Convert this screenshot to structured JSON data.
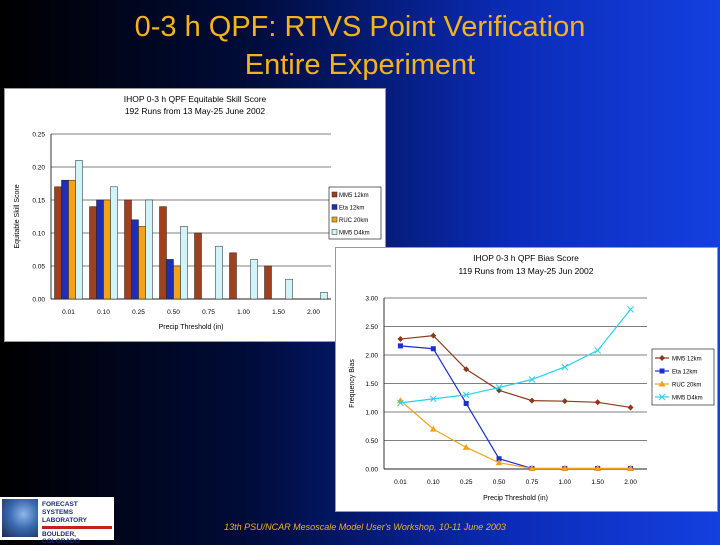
{
  "slide": {
    "title_line1": "0-3 h QPF: RTVS Point Verification",
    "title_line2": "Entire Experiment",
    "footer": "13th PSU/NCAR Mesoscale Model User's Workshop, 10-11 June 2003",
    "logo": {
      "line1": "FORECAST",
      "line2": "SYSTEMS",
      "line3": "LABORATORY",
      "line4": "BOULDER, COLORADO"
    }
  },
  "chart_data": [
    {
      "type": "bar",
      "title": "IHOP 0-3 h QPF Equitable Skill Score",
      "subtitle": "192 Runs from 13 May-25 June 2002",
      "xlabel": "Precip Threshold (in)",
      "ylabel": "Equitable Skill Score",
      "ylim": [
        0,
        0.25
      ],
      "yticks": [
        "0.00",
        "0.05",
        "0.10",
        "0.15",
        "0.20",
        "0.25"
      ],
      "categories": [
        "0.01",
        "0.10",
        "0.25",
        "0.50",
        "0.75",
        "1.00",
        "1.50",
        "2.00"
      ],
      "legend_position": "right",
      "series": [
        {
          "name": "MM5 12km",
          "color": "#a0401e",
          "values": [
            0.17,
            0.14,
            0.15,
            0.14,
            0.1,
            0.07,
            0.05,
            0
          ]
        },
        {
          "name": "Eta 12km",
          "color": "#1c2fb8",
          "values": [
            0.18,
            0.15,
            0.12,
            0.06,
            0,
            0,
            0,
            0
          ]
        },
        {
          "name": "RUC 20km",
          "color": "#f4a316",
          "values": [
            0.18,
            0.15,
            0.11,
            0.05,
            0,
            0,
            0,
            0
          ]
        },
        {
          "name": "MM5 D4km",
          "color": "#d0f4f8",
          "values": [
            0.21,
            0.17,
            0.15,
            0.11,
            0.08,
            0.06,
            0.03,
            0.01
          ]
        }
      ]
    },
    {
      "type": "line",
      "title": "IHOP 0-3 h QPF Bias Score",
      "subtitle": "119 Runs from 13 May-25 Jun 2002",
      "xlabel": "Precip Threshold (in)",
      "ylabel": "Frequency Bias",
      "ylim": [
        0,
        3.0
      ],
      "yticks": [
        "0.00",
        "0.50",
        "1.00",
        "1.50",
        "2.00",
        "2.50",
        "3.00"
      ],
      "categories": [
        "0.01",
        "0.10",
        "0.25",
        "0.50",
        "0.75",
        "1.00",
        "1.50",
        "2.00"
      ],
      "legend_position": "right",
      "series": [
        {
          "name": "MM5 12km",
          "color": "#8b3a1a",
          "marker": "diamond",
          "values": [
            2.28,
            2.34,
            1.75,
            1.38,
            1.2,
            1.19,
            1.17,
            1.08
          ]
        },
        {
          "name": "Eta 12km",
          "color": "#1a2fd0",
          "marker": "square",
          "values": [
            2.16,
            2.11,
            1.15,
            0.18,
            0.01,
            0.01,
            0.01,
            0.01
          ]
        },
        {
          "name": "RUC 20km",
          "color": "#f4a316",
          "marker": "triangle",
          "values": [
            1.2,
            0.7,
            0.38,
            0.11,
            0.01,
            0.01,
            0.01,
            0.01
          ]
        },
        {
          "name": "MM5 D4km",
          "color": "#26d2e8",
          "marker": "x",
          "values": [
            1.16,
            1.23,
            1.3,
            1.43,
            1.57,
            1.79,
            2.08,
            2.8
          ]
        }
      ]
    }
  ]
}
